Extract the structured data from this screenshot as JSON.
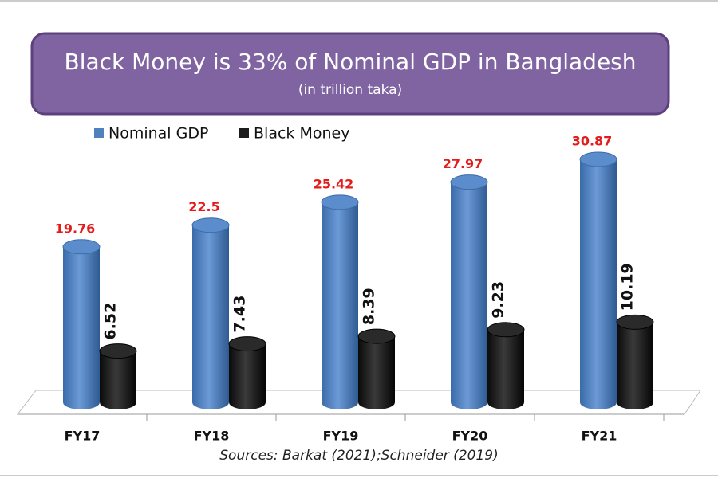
{
  "chart_data": {
    "type": "bar",
    "title": "Black Money is 33% of Nominal GDP in Bangladesh",
    "subtitle": "(in trillion taka)",
    "categories": [
      "FY17",
      "FY18",
      "FY19",
      "FY20",
      "FY21"
    ],
    "series": [
      {
        "name": "Nominal GDP",
        "color": "#4f81bd",
        "values": [
          19.76,
          22.5,
          25.42,
          27.97,
          30.87
        ]
      },
      {
        "name": "Black Money",
        "color": "#1c1c1c",
        "values": [
          6.52,
          7.43,
          8.39,
          9.23,
          10.19
        ]
      }
    ],
    "source": "Sources: Barkat (2021);Schneider (2019)"
  }
}
